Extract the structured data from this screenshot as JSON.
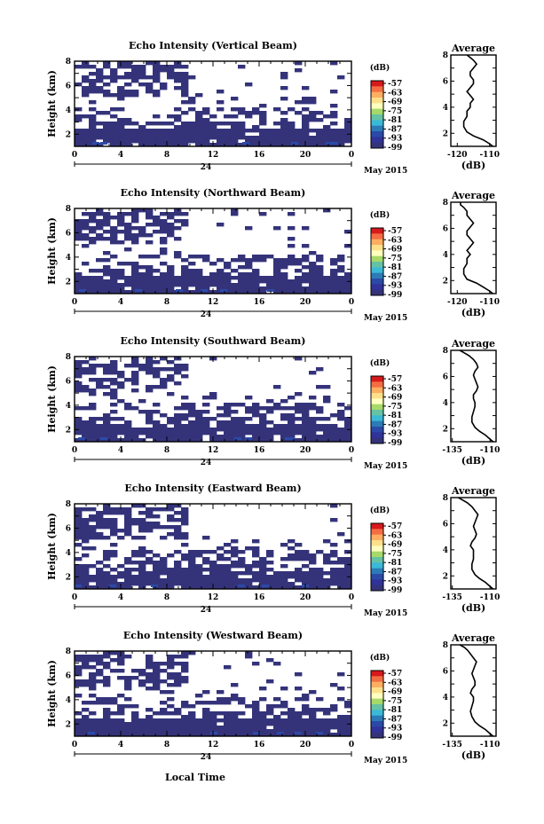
{
  "figure": {
    "xlabel": "Local Time",
    "date_label": "May 2015",
    "day_label": "24",
    "colorbar_unit": "(dB)",
    "colorbar_ticks": [
      "-57",
      "-63",
      "-69",
      "-75",
      "-81",
      "-87",
      "-93",
      "-99"
    ],
    "colorbar_colors": [
      "#d7191c",
      "#f46d43",
      "#fdae61",
      "#fee08b",
      "#ffffbf",
      "#a6d96a",
      "#66c2a5",
      "#3bb9d6",
      "#2c7bb6",
      "#2b4aa8",
      "#30339a",
      "#34337a"
    ],
    "fill_color": "#34337a",
    "avg_title": "Average",
    "avg_xlabel": "(dB)"
  },
  "chart_data": [
    {
      "type": "heatmap",
      "title": "Echo Intensity (Vertical Beam)",
      "xlabel": "Local Time",
      "ylabel": "Height (km)",
      "x_ticks": [
        "0",
        "4",
        "8",
        "12",
        "16",
        "20",
        "0"
      ],
      "y_ticks": [
        "2",
        "4",
        "6",
        "8"
      ],
      "xlim": [
        0,
        24
      ],
      "ylim": [
        1,
        8
      ],
      "avg": {
        "type": "line",
        "title": "Average",
        "xlabel": "(dB)",
        "xlim": [
          -122,
          -108
        ],
        "x_ticks": [
          "-120",
          "-110"
        ],
        "y_ticks": [
          "2",
          "4",
          "6",
          "8"
        ],
        "x": [
          -109,
          -110,
          -112,
          -115,
          -117,
          -118,
          -118,
          -117,
          -117,
          -116,
          -116,
          -115,
          -116,
          -117,
          -116,
          -115,
          -115,
          -116,
          -116,
          -115,
          -114,
          -115,
          -116,
          -117
        ],
        "y": [
          1.0,
          1.2,
          1.5,
          1.8,
          2.1,
          2.5,
          2.9,
          3.3,
          3.7,
          4.0,
          4.3,
          4.6,
          4.9,
          5.2,
          5.5,
          5.8,
          6.1,
          6.4,
          6.7,
          7.0,
          7.3,
          7.6,
          7.8,
          8.0
        ]
      }
    },
    {
      "type": "heatmap",
      "title": "Echo Intensity (Northward Beam)",
      "xlabel": "Local Time",
      "ylabel": "Height (km)",
      "x_ticks": [
        "0",
        "4",
        "8",
        "12",
        "16",
        "20",
        "0"
      ],
      "y_ticks": [
        "2",
        "4",
        "6",
        "8"
      ],
      "xlim": [
        0,
        24
      ],
      "ylim": [
        1,
        8
      ],
      "avg": {
        "type": "line",
        "title": "Average",
        "xlabel": "(dB)",
        "xlim": [
          -122,
          -108
        ],
        "x_ticks": [
          "-120",
          "-110"
        ],
        "y_ticks": [
          "2",
          "4",
          "6",
          "8"
        ],
        "x": [
          -109,
          -110,
          -112,
          -114,
          -117,
          -118,
          -118,
          -117,
          -117,
          -116,
          -117,
          -116,
          -115,
          -116,
          -117,
          -117,
          -116,
          -115,
          -116,
          -117,
          -117,
          -118,
          -119,
          -119
        ],
        "y": [
          1.0,
          1.2,
          1.5,
          1.8,
          2.1,
          2.5,
          2.9,
          3.3,
          3.7,
          4.0,
          4.3,
          4.6,
          4.9,
          5.2,
          5.5,
          5.8,
          6.1,
          6.4,
          6.7,
          7.0,
          7.3,
          7.6,
          7.8,
          8.0
        ]
      }
    },
    {
      "type": "heatmap",
      "title": "Echo Intensity (Southward Beam)",
      "xlabel": "Local Time",
      "ylabel": "Height (km)",
      "x_ticks": [
        "0",
        "4",
        "8",
        "12",
        "16",
        "20",
        "0"
      ],
      "y_ticks": [
        "2",
        "4",
        "6",
        "8"
      ],
      "xlim": [
        0,
        24
      ],
      "ylim": [
        1,
        8
      ],
      "avg": {
        "type": "line",
        "title": "Average",
        "xlabel": "(dB)",
        "xlim": [
          -136,
          -106
        ],
        "x_ticks": [
          "-135",
          "-110"
        ],
        "y_ticks": [
          "2",
          "4",
          "6",
          "8"
        ],
        "x": [
          -108,
          -110,
          -113,
          -117,
          -120,
          -122,
          -122,
          -121,
          -120,
          -120,
          -121,
          -121,
          -119,
          -118,
          -119,
          -120,
          -121,
          -120,
          -118,
          -119,
          -121,
          -124,
          -127,
          -130
        ],
        "y": [
          1.0,
          1.2,
          1.5,
          1.8,
          2.1,
          2.5,
          2.9,
          3.3,
          3.7,
          4.0,
          4.3,
          4.6,
          4.9,
          5.2,
          5.5,
          5.8,
          6.1,
          6.4,
          6.7,
          7.0,
          7.3,
          7.6,
          7.8,
          8.0
        ]
      }
    },
    {
      "type": "heatmap",
      "title": "Echo Intensity (Eastward Beam)",
      "xlabel": "Local Time",
      "ylabel": "Height (km)",
      "x_ticks": [
        "0",
        "4",
        "8",
        "12",
        "16",
        "20",
        "0"
      ],
      "y_ticks": [
        "2",
        "4",
        "6",
        "8"
      ],
      "xlim": [
        0,
        24
      ],
      "ylim": [
        1,
        8
      ],
      "avg": {
        "type": "line",
        "title": "Average",
        "xlabel": "(dB)",
        "xlim": [
          -136,
          -106
        ],
        "x_ticks": [
          "-135",
          "-110"
        ],
        "y_ticks": [
          "2",
          "4",
          "6",
          "8"
        ],
        "x": [
          -108,
          -110,
          -113,
          -117,
          -120,
          -122,
          -122,
          -121,
          -121,
          -121,
          -123,
          -122,
          -120,
          -119,
          -120,
          -121,
          -120,
          -119,
          -118,
          -120,
          -122,
          -125,
          -128,
          -131
        ],
        "y": [
          1.0,
          1.2,
          1.5,
          1.8,
          2.1,
          2.5,
          2.9,
          3.3,
          3.7,
          4.0,
          4.3,
          4.6,
          4.9,
          5.2,
          5.5,
          5.8,
          6.1,
          6.4,
          6.7,
          7.0,
          7.3,
          7.6,
          7.8,
          8.0
        ]
      }
    },
    {
      "type": "heatmap",
      "title": "Echo Intensity (Westward Beam)",
      "xlabel": "Local Time",
      "ylabel": "Height (km)",
      "x_ticks": [
        "0",
        "4",
        "8",
        "12",
        "16",
        "20",
        "0"
      ],
      "y_ticks": [
        "2",
        "4",
        "6",
        "8"
      ],
      "xlim": [
        0,
        24
      ],
      "ylim": [
        1,
        8
      ],
      "avg": {
        "type": "line",
        "title": "Average",
        "xlabel": "(dB)",
        "xlim": [
          -136,
          -106
        ],
        "x_ticks": [
          "-135",
          "-110"
        ],
        "y_ticks": [
          "2",
          "4",
          "6",
          "8"
        ],
        "x": [
          -108,
          -110,
          -113,
          -117,
          -120,
          -122,
          -123,
          -122,
          -121,
          -121,
          -123,
          -122,
          -120,
          -120,
          -121,
          -122,
          -121,
          -120,
          -119,
          -121,
          -123,
          -125,
          -127,
          -130
        ],
        "y": [
          1.0,
          1.2,
          1.5,
          1.8,
          2.1,
          2.5,
          2.9,
          3.3,
          3.7,
          4.0,
          4.3,
          4.6,
          4.9,
          5.2,
          5.5,
          5.8,
          6.1,
          6.4,
          6.7,
          7.0,
          7.3,
          7.6,
          7.8,
          8.0
        ]
      }
    }
  ]
}
